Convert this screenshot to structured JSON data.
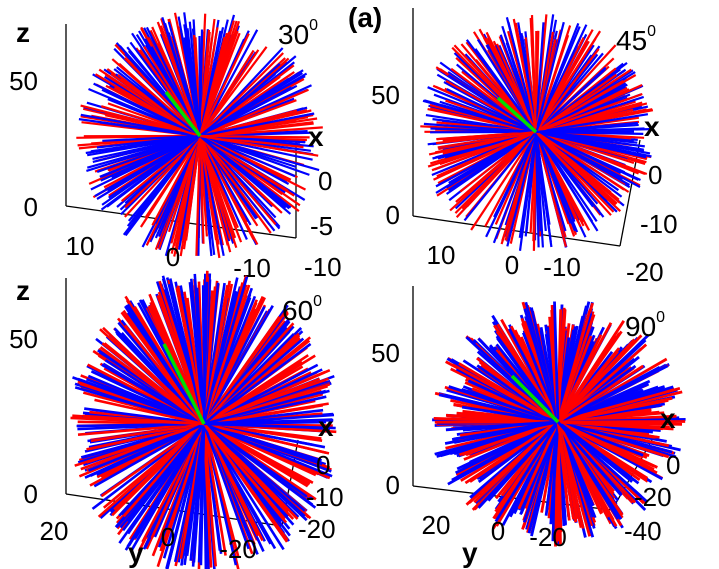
{
  "figure_label": "(a)",
  "colors": {
    "series_a": "#ff0000",
    "series_b": "#0000ff",
    "highlight": "#00dd00",
    "axis": "#000000"
  },
  "chart_data": [
    {
      "type": "line3d-fan",
      "panel": "top-left",
      "angle": "30",
      "angle_unit": "0",
      "z_label": "z",
      "x_label": "x",
      "y_label": "",
      "z_ticks": [
        "50",
        "0"
      ],
      "y_ticks": [
        "10",
        "0",
        "-10"
      ],
      "x_ticks": [
        "0",
        "-5",
        "-10"
      ],
      "zlim": [
        0,
        60
      ],
      "series": [
        {
          "color": "red",
          "lines": 180
        },
        {
          "color": "blue",
          "lines": 180
        },
        {
          "color": "green",
          "lines": 1
        }
      ]
    },
    {
      "type": "line3d-fan",
      "panel": "top-right",
      "angle": "45",
      "angle_unit": "0",
      "z_label": "",
      "x_label": "x",
      "y_label": "",
      "z_ticks": [
        "50",
        "0"
      ],
      "y_ticks": [
        "10",
        "0",
        "-10"
      ],
      "x_ticks": [
        "0",
        "-10",
        "-20"
      ],
      "zlim": [
        0,
        60
      ],
      "series": [
        {
          "color": "red",
          "lines": 180
        },
        {
          "color": "blue",
          "lines": 180
        },
        {
          "color": "green",
          "lines": 1
        }
      ]
    },
    {
      "type": "line3d-fan",
      "panel": "bottom-left",
      "angle": "60",
      "angle_unit": "0",
      "z_label": "z",
      "x_label": "x",
      "y_label": "y",
      "z_ticks": [
        "50",
        "0"
      ],
      "y_ticks": [
        "20",
        "0",
        "-20"
      ],
      "x_ticks": [
        "0",
        "-10",
        "-20"
      ],
      "zlim": [
        0,
        70
      ],
      "series": [
        {
          "color": "red",
          "lines": 220
        },
        {
          "color": "blue",
          "lines": 220
        },
        {
          "color": "green",
          "lines": 1
        }
      ]
    },
    {
      "type": "line3d-fan",
      "panel": "bottom-right",
      "angle": "90",
      "angle_unit": "0",
      "z_label": "",
      "x_label": "x",
      "y_label": "y",
      "z_ticks": [
        "50",
        "0"
      ],
      "y_ticks": [
        "20",
        "0",
        "-20"
      ],
      "x_ticks": [
        "0",
        "-20",
        "-40"
      ],
      "zlim": [
        0,
        60
      ],
      "series": [
        {
          "color": "red",
          "lines": 240
        },
        {
          "color": "blue",
          "lines": 240
        },
        {
          "color": "green",
          "lines": 1
        }
      ]
    }
  ]
}
